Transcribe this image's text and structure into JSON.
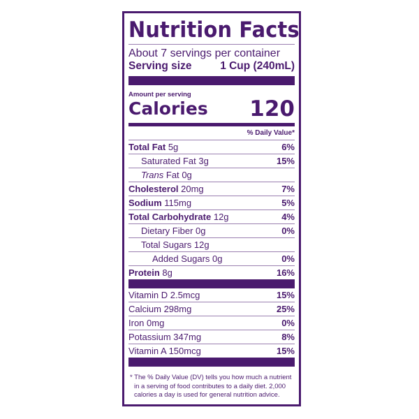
{
  "title": "Nutrition Facts",
  "servings": "About 7 servings per container",
  "serving_size": {
    "label": "Serving size",
    "value": "1 Cup (240mL)"
  },
  "amount_per_serving": "Amount per serving",
  "calories": {
    "label": "Calories",
    "value": "120"
  },
  "dv_header": "% Daily Value*",
  "nutrients": [
    {
      "name": "Total Fat",
      "amount": "5g",
      "dv": "6%",
      "bold": true,
      "indent": 0
    },
    {
      "name": "Saturated Fat",
      "amount": "3g",
      "dv": "15%",
      "bold": false,
      "indent": 1
    },
    {
      "name": "Trans",
      "name_suffix": "Fat",
      "amount": "0g",
      "dv": "",
      "bold": false,
      "indent": 1
    },
    {
      "name": "Cholesterol",
      "amount": "20mg",
      "dv": "7%",
      "bold": true,
      "indent": 0
    },
    {
      "name": "Sodium",
      "amount": "115mg",
      "dv": "5%",
      "bold": true,
      "indent": 0
    },
    {
      "name": "Total Carbohydrate",
      "amount": "12g",
      "dv": "4%",
      "bold": true,
      "indent": 0
    },
    {
      "name": "Dietary Fiber",
      "amount": "0g",
      "dv": "0%",
      "bold": false,
      "indent": 1
    },
    {
      "name": "Total Sugars",
      "amount": "12g",
      "dv": "",
      "bold": false,
      "indent": 1
    },
    {
      "name": "Added Sugars",
      "amount": "0g",
      "dv": "0%",
      "bold": false,
      "indent": 2
    },
    {
      "name": "Protein",
      "amount": "8g",
      "dv": "16%",
      "bold": true,
      "indent": 0
    }
  ],
  "vitamins": [
    {
      "name": "Vitamin D 2.5mcg",
      "dv": "15%"
    },
    {
      "name": "Calcium 298mg",
      "dv": "25%"
    },
    {
      "name": "Iron 0mg",
      "dv": "0%"
    },
    {
      "name": "Potassium 347mg",
      "dv": "8%"
    },
    {
      "name": "Vitamin A 150mcg",
      "dv": "15%"
    }
  ],
  "footnote": "* The % Daily Value (DV) tells you how much a nutrient in a serving of food contributes to a daily diet. 2,000 calories a day is used for general nutrition advice.",
  "colors": {
    "primary": "#4a1a6e"
  }
}
